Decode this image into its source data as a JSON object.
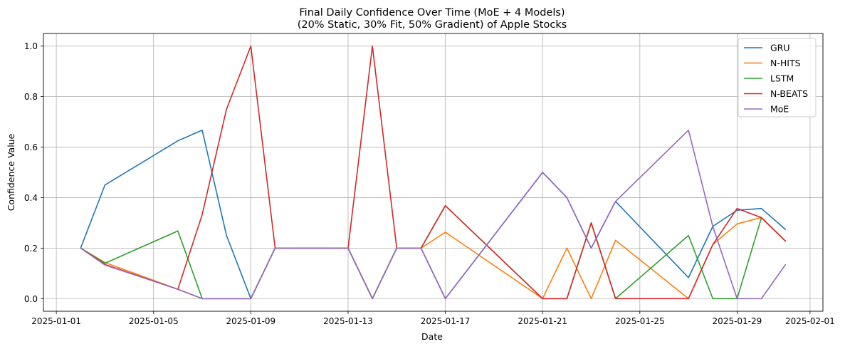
{
  "chart_data": {
    "type": "line",
    "title_line1": "Final Daily Confidence Over Time (MoE + 4 Models)",
    "title_line2": "(20% Static, 30% Fit, 50% Gradient) of Apple Stocks",
    "xlabel": "Date",
    "ylabel": "Confidence Value",
    "ylim": [
      -0.05,
      1.05
    ],
    "xlim": [
      "2025-01-01",
      "2025-02-01"
    ],
    "x_ticks": [
      "2025-01-01",
      "2025-01-05",
      "2025-01-09",
      "2025-01-13",
      "2025-01-17",
      "2025-01-21",
      "2025-01-25",
      "2025-01-29",
      "2025-02-01"
    ],
    "y_ticks": [
      "0.0",
      "0.2",
      "0.4",
      "0.6",
      "0.8",
      "1.0"
    ],
    "grid": true,
    "legend_position": "top-right",
    "x": [
      "2025-01-02",
      "2025-01-03",
      "2025-01-06",
      "2025-01-07",
      "2025-01-08",
      "2025-01-09",
      "2025-01-10",
      "2025-01-13",
      "2025-01-14",
      "2025-01-15",
      "2025-01-16",
      "2025-01-17",
      "2025-01-21",
      "2025-01-22",
      "2025-01-23",
      "2025-01-24",
      "2025-01-27",
      "2025-01-28",
      "2025-01-29",
      "2025-01-30",
      "2025-01-31"
    ],
    "series": [
      {
        "name": "GRU",
        "color": "#1f77b4",
        "values": [
          0.2,
          0.45,
          0.625,
          0.667,
          0.25,
          0.0,
          0.2,
          0.2,
          0.0,
          0.2,
          0.2,
          0.0,
          0.5,
          0.4,
          0.2,
          0.385,
          0.083,
          0.286,
          0.35,
          0.357,
          0.273
        ]
      },
      {
        "name": "N-HITS",
        "color": "#ff7f0e",
        "values": [
          0.2,
          0.143,
          0.037,
          0.0,
          0.0,
          0.0,
          0.2,
          0.2,
          0.0,
          0.2,
          0.2,
          0.263,
          0.0,
          0.2,
          0.0,
          0.231,
          0.0,
          0.214,
          0.296,
          0.321,
          0.227
        ]
      },
      {
        "name": "LSTM",
        "color": "#2ca02c",
        "values": [
          0.2,
          0.14,
          0.268,
          0.0,
          0.0,
          0.0,
          0.2,
          0.2,
          0.0,
          0.2,
          0.2,
          0.368,
          0.0,
          0.0,
          0.3,
          0.0,
          0.25,
          0.0,
          0.0,
          0.32,
          0.227
        ]
      },
      {
        "name": "N-BEATS",
        "color": "#d62728",
        "values": [
          0.2,
          0.135,
          0.037,
          0.333,
          0.75,
          1.0,
          0.2,
          0.2,
          1.0,
          0.2,
          0.2,
          0.368,
          0.0,
          0.0,
          0.3,
          0.0,
          0.0,
          0.214,
          0.357,
          0.321,
          0.227
        ]
      },
      {
        "name": "MoE",
        "color": "#9467bd",
        "values": [
          0.2,
          0.133,
          0.037,
          0.0,
          0.0,
          0.0,
          0.2,
          0.2,
          0.0,
          0.2,
          0.2,
          0.0,
          0.5,
          0.4,
          0.2,
          0.385,
          0.667,
          0.286,
          0.0,
          0.0,
          0.136
        ]
      }
    ]
  }
}
